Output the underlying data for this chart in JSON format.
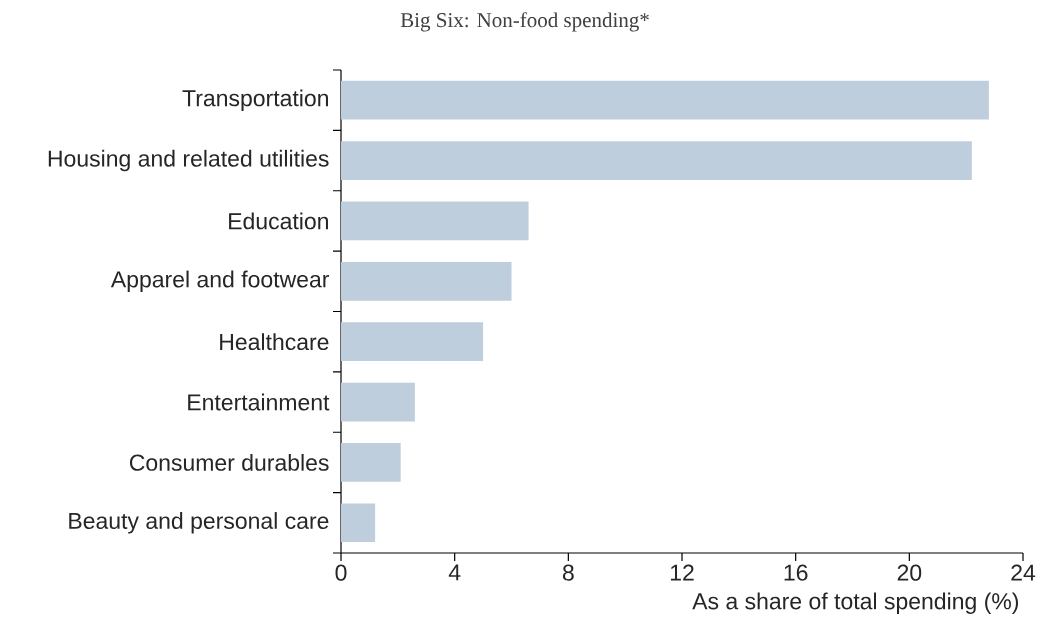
{
  "chart_data": {
    "type": "bar",
    "orientation": "horizontal",
    "title": "Big Six: Non-food spending*",
    "xlabel": "As a share of total spending (%)",
    "categories": [
      "Transportation",
      "Housing and related utilities",
      "Education",
      "Apparel and footwear",
      "Healthcare",
      "Entertainment",
      "Consumer durables",
      "Beauty and personal care"
    ],
    "values": [
      22.8,
      22.2,
      6.6,
      6.0,
      5.0,
      2.6,
      2.1,
      1.2
    ],
    "color": "#bfcedd",
    "xlim": [
      0,
      24
    ],
    "xticks": [
      0,
      4,
      8,
      12,
      16,
      20,
      24
    ],
    "grid": false
  }
}
